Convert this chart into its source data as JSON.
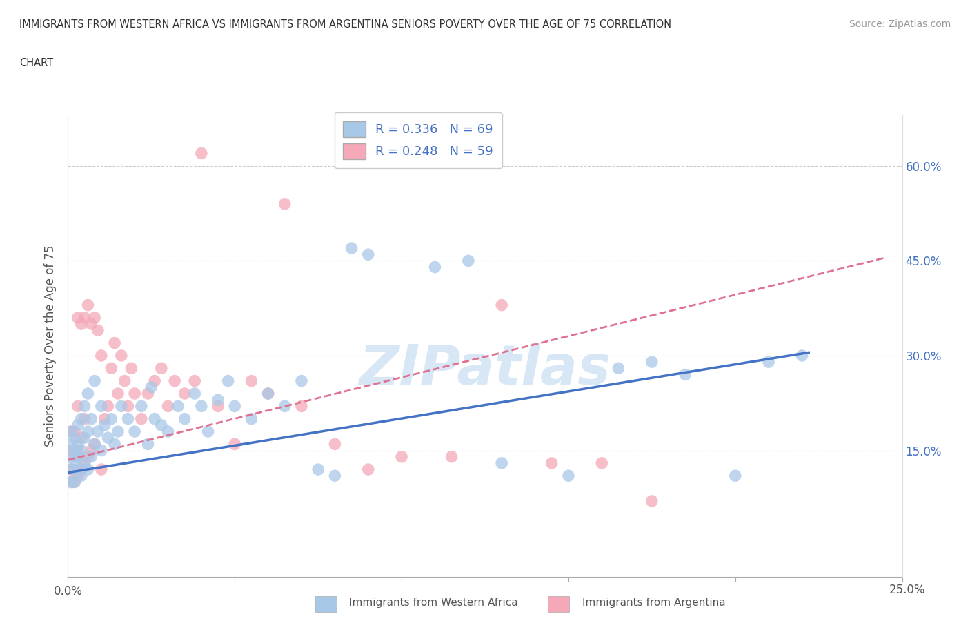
{
  "title_line1": "IMMIGRANTS FROM WESTERN AFRICA VS IMMIGRANTS FROM ARGENTINA SENIORS POVERTY OVER THE AGE OF 75 CORRELATION",
  "title_line2": "CHART",
  "source": "Source: ZipAtlas.com",
  "ylabel": "Seniors Poverty Over the Age of 75",
  "xlim": [
    0.0,
    0.25
  ],
  "ylim": [
    -0.05,
    0.68
  ],
  "x_ticks": [
    0.0,
    0.05,
    0.1,
    0.15,
    0.2,
    0.25
  ],
  "y_ticks": [
    0.0,
    0.15,
    0.3,
    0.45,
    0.6
  ],
  "legend_label_blue": "Immigrants from Western Africa",
  "legend_label_pink": "Immigrants from Argentina",
  "R_blue": 0.336,
  "N_blue": 69,
  "R_pink": 0.248,
  "N_pink": 59,
  "color_blue": "#a8c8e8",
  "color_pink": "#f4a8b8",
  "line_color_blue": "#4472c4",
  "line_color_pink": "#e07090",
  "watermark": "ZIPatlas",
  "background_color": "#ffffff",
  "grid_color": "#cccccc",
  "blue_line_x": [
    0.0,
    0.222
  ],
  "blue_line_y": [
    0.115,
    0.305
  ],
  "pink_line_x": [
    0.0,
    0.245
  ],
  "pink_line_y": [
    0.135,
    0.455
  ],
  "blue_scatter_x": [
    0.001,
    0.001,
    0.001,
    0.001,
    0.001,
    0.002,
    0.002,
    0.002,
    0.002,
    0.003,
    0.003,
    0.003,
    0.003,
    0.004,
    0.004,
    0.004,
    0.005,
    0.005,
    0.005,
    0.006,
    0.006,
    0.006,
    0.007,
    0.007,
    0.008,
    0.008,
    0.009,
    0.01,
    0.01,
    0.011,
    0.012,
    0.013,
    0.014,
    0.015,
    0.016,
    0.018,
    0.02,
    0.022,
    0.024,
    0.025,
    0.026,
    0.028,
    0.03,
    0.033,
    0.035,
    0.038,
    0.04,
    0.042,
    0.045,
    0.048,
    0.05,
    0.055,
    0.06,
    0.065,
    0.07,
    0.075,
    0.08,
    0.085,
    0.09,
    0.11,
    0.12,
    0.13,
    0.15,
    0.165,
    0.175,
    0.185,
    0.2,
    0.21,
    0.22
  ],
  "blue_scatter_y": [
    0.1,
    0.12,
    0.14,
    0.16,
    0.18,
    0.1,
    0.13,
    0.15,
    0.17,
    0.12,
    0.14,
    0.16,
    0.19,
    0.11,
    0.15,
    0.2,
    0.13,
    0.17,
    0.22,
    0.12,
    0.18,
    0.24,
    0.14,
    0.2,
    0.16,
    0.26,
    0.18,
    0.15,
    0.22,
    0.19,
    0.17,
    0.2,
    0.16,
    0.18,
    0.22,
    0.2,
    0.18,
    0.22,
    0.16,
    0.25,
    0.2,
    0.19,
    0.18,
    0.22,
    0.2,
    0.24,
    0.22,
    0.18,
    0.23,
    0.26,
    0.22,
    0.2,
    0.24,
    0.22,
    0.26,
    0.12,
    0.11,
    0.47,
    0.46,
    0.44,
    0.45,
    0.13,
    0.11,
    0.28,
    0.29,
    0.27,
    0.11,
    0.29,
    0.3
  ],
  "pink_scatter_x": [
    0.001,
    0.001,
    0.001,
    0.001,
    0.002,
    0.002,
    0.002,
    0.003,
    0.003,
    0.003,
    0.003,
    0.004,
    0.004,
    0.004,
    0.005,
    0.005,
    0.005,
    0.006,
    0.006,
    0.007,
    0.007,
    0.008,
    0.008,
    0.009,
    0.01,
    0.01,
    0.011,
    0.012,
    0.013,
    0.014,
    0.015,
    0.016,
    0.017,
    0.018,
    0.019,
    0.02,
    0.022,
    0.024,
    0.026,
    0.028,
    0.03,
    0.032,
    0.035,
    0.038,
    0.04,
    0.045,
    0.05,
    0.055,
    0.06,
    0.065,
    0.07,
    0.08,
    0.09,
    0.1,
    0.115,
    0.13,
    0.145,
    0.16,
    0.175
  ],
  "pink_scatter_y": [
    0.1,
    0.12,
    0.15,
    0.18,
    0.1,
    0.14,
    0.18,
    0.11,
    0.15,
    0.22,
    0.36,
    0.12,
    0.17,
    0.35,
    0.13,
    0.2,
    0.36,
    0.14,
    0.38,
    0.15,
    0.35,
    0.16,
    0.36,
    0.34,
    0.12,
    0.3,
    0.2,
    0.22,
    0.28,
    0.32,
    0.24,
    0.3,
    0.26,
    0.22,
    0.28,
    0.24,
    0.2,
    0.24,
    0.26,
    0.28,
    0.22,
    0.26,
    0.24,
    0.26,
    0.62,
    0.22,
    0.16,
    0.26,
    0.24,
    0.54,
    0.22,
    0.16,
    0.12,
    0.14,
    0.14,
    0.38,
    0.13,
    0.13,
    0.07
  ]
}
